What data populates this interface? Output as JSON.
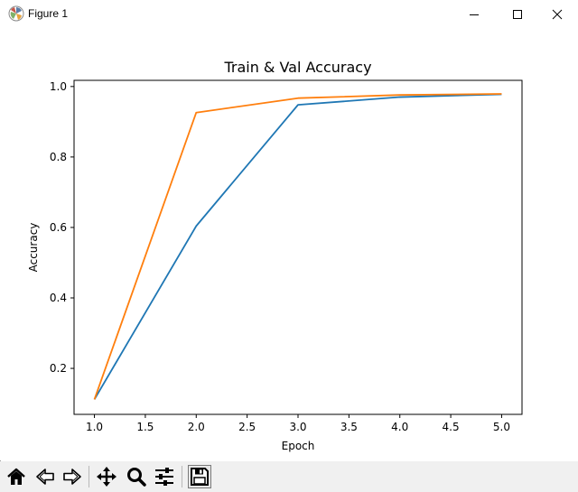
{
  "window": {
    "title": "Figure 1"
  },
  "toolbar": {
    "buttons": [
      "home-icon",
      "back-arrow-icon",
      "forward-arrow-icon",
      "pan-icon",
      "zoom-icon",
      "configure-subplots-icon",
      "save-icon"
    ]
  },
  "chart_data": {
    "type": "line",
    "title": "Train & Val Accuracy",
    "xlabel": "Epoch",
    "ylabel": "Accuracy",
    "x": [
      1.0,
      2.0,
      3.0,
      4.0,
      5.0
    ],
    "xlim": [
      0.8,
      5.2
    ],
    "ylim": [
      0.0695,
      1.0175
    ],
    "xticks": [
      "1.0",
      "1.5",
      "2.0",
      "2.5",
      "3.0",
      "3.5",
      "4.0",
      "4.5",
      "5.0"
    ],
    "xtick_values": [
      1.0,
      1.5,
      2.0,
      2.5,
      3.0,
      3.5,
      4.0,
      4.5,
      5.0
    ],
    "yticks": [
      "0.2",
      "0.4",
      "0.6",
      "0.8",
      "1.0"
    ],
    "ytick_values": [
      0.2,
      0.4,
      0.6,
      0.8,
      1.0
    ],
    "grid": false,
    "series": [
      {
        "values": [
          0.112,
          0.604,
          0.948,
          0.97,
          0.978
        ],
        "color": "#1f77b4"
      },
      {
        "values": [
          0.112,
          0.926,
          0.967,
          0.976,
          0.979
        ],
        "color": "#ff7f0e"
      }
    ]
  }
}
